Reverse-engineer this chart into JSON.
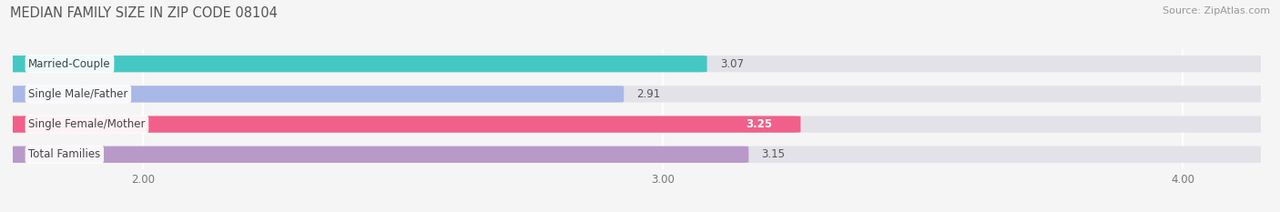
{
  "title": "MEDIAN FAMILY SIZE IN ZIP CODE 08104",
  "source": "Source: ZipAtlas.com",
  "categories": [
    "Married-Couple",
    "Single Male/Father",
    "Single Female/Mother",
    "Total Families"
  ],
  "values": [
    3.07,
    2.91,
    3.25,
    3.15
  ],
  "bar_colors": [
    "#45c8c4",
    "#aab8e8",
    "#f0608a",
    "#b89ac8"
  ],
  "xlim": [
    1.75,
    4.15
  ],
  "xticks": [
    2.0,
    3.0,
    4.0
  ],
  "xtick_labels": [
    "2.00",
    "3.00",
    "4.00"
  ],
  "bar_height": 0.52,
  "background_color": "#f5f5f5",
  "bar_bg_color": "#e2e2e8",
  "title_fontsize": 10.5,
  "label_fontsize": 8.5,
  "value_fontsize": 8.5,
  "tick_fontsize": 8.5,
  "source_fontsize": 8,
  "value_white_index": 2
}
